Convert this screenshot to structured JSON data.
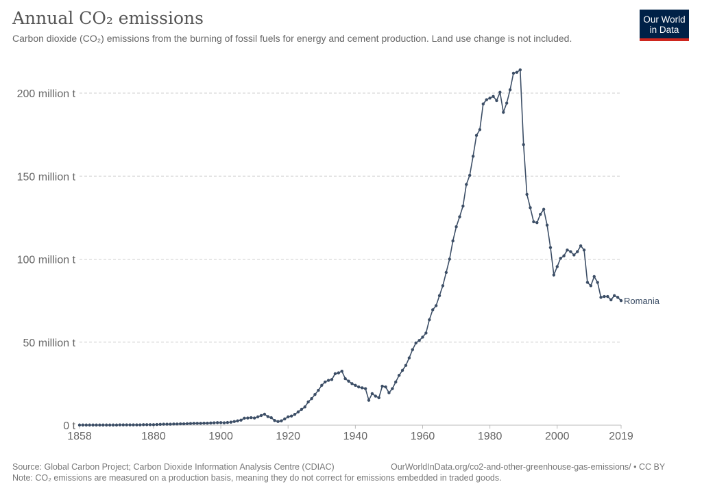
{
  "header": {
    "title": "Annual CO₂ emissions",
    "subtitle": "Carbon dioxide (CO₂) emissions from the burning of fossil fuels for energy and cement production. Land use change is not included.",
    "logo_line1": "Our World",
    "logo_line2": "in Data"
  },
  "footer": {
    "source": "Source: Global Carbon Project; Carbon Dioxide Information Analysis Centre (CDIAC)",
    "url": "OurWorldInData.org/co2-and-other-greenhouse-gas-emissions/ • CC BY",
    "note": "Note: CO₂ emissions are measured on a production basis, meaning they do not correct for emissions embedded in traded goods."
  },
  "chart_data": {
    "type": "line",
    "title": "Annual CO₂ emissions",
    "xlabel": "",
    "ylabel": "",
    "xlim": [
      1858,
      2019
    ],
    "ylim": [
      0,
      214
    ],
    "x_ticks": [
      1858,
      1880,
      1900,
      1920,
      1940,
      1960,
      1980,
      2000,
      2019
    ],
    "y_ticks": [
      {
        "value": 0,
        "label": "0 t"
      },
      {
        "value": 50,
        "label": "50 million t"
      },
      {
        "value": 100,
        "label": "100 million t"
      },
      {
        "value": 150,
        "label": "150 million t"
      },
      {
        "value": 200,
        "label": "200 million t"
      }
    ],
    "grid": "horizontal dashed",
    "unit": "million t",
    "color": "#3c4e66",
    "series": [
      {
        "name": "Romania",
        "start_year": 1858,
        "values": [
          0.1,
          0.1,
          0.1,
          0.1,
          0.1,
          0.1,
          0.1,
          0.1,
          0.1,
          0.1,
          0.1,
          0.1,
          0.2,
          0.2,
          0.2,
          0.2,
          0.2,
          0.2,
          0.2,
          0.3,
          0.3,
          0.3,
          0.3,
          0.4,
          0.5,
          0.6,
          0.6,
          0.6,
          0.7,
          0.7,
          0.8,
          0.8,
          0.9,
          1.0,
          1.1,
          1.1,
          1.1,
          1.2,
          1.2,
          1.3,
          1.4,
          1.5,
          1.5,
          1.4,
          1.6,
          1.8,
          2.2,
          2.6,
          3.0,
          4.2,
          4.3,
          4.5,
          4.3,
          5.0,
          5.8,
          6.6,
          5.2,
          4.5,
          2.8,
          2.2,
          2.6,
          3.8,
          5.0,
          5.5,
          6.5,
          8.0,
          9.5,
          11,
          14,
          16,
          18.5,
          21,
          24,
          26,
          27,
          27.5,
          31,
          31.5,
          32.5,
          28,
          26.5,
          25,
          24,
          23,
          22.5,
          22,
          15,
          19,
          17.5,
          16.5,
          23.5,
          23,
          19.5,
          22,
          26,
          30,
          33,
          36,
          40.5,
          45.5,
          49.5,
          51,
          53,
          55.5,
          63.5,
          69.5,
          72,
          78,
          84,
          92,
          100,
          111,
          119.5,
          125.5,
          132,
          145,
          150.5,
          162,
          174.5,
          178,
          193.5,
          196,
          197,
          198,
          195.5,
          200.5,
          188.5,
          194,
          202,
          212,
          212.5,
          214,
          169,
          139,
          131,
          122.5,
          122,
          127,
          130,
          120.5,
          107,
          90.5,
          95.5,
          100.5,
          102,
          105.5,
          104.5,
          102.5,
          104.5,
          108,
          105.5,
          86,
          84,
          89.5,
          86,
          77,
          77.5,
          77.5,
          75.5,
          78,
          77,
          75
        ]
      }
    ]
  }
}
